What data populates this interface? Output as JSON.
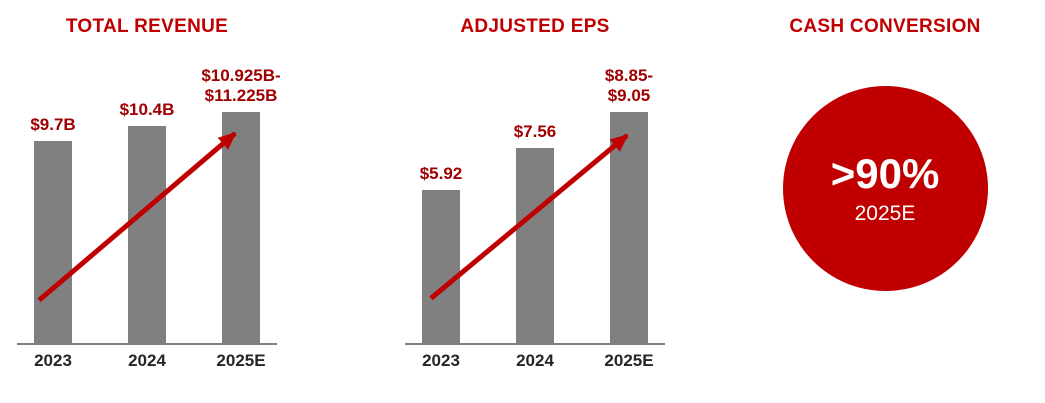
{
  "page": {
    "background": "#ffffff",
    "description": "Financial highlights infographic with two bar charts and one KPI circle"
  },
  "colors": {
    "accent_red": "#c00000",
    "bar_gray": "#808080",
    "axis_gray": "#808080",
    "value_label_red": "#a00000",
    "category_text": "#262626",
    "kpi_text": "#ffffff"
  },
  "chart_data": [
    {
      "type": "bar",
      "title": "TOTAL REVENUE",
      "categories": [
        "2023",
        "2024",
        "2025E"
      ],
      "values": [
        9.7,
        10.4,
        11.075
      ],
      "value_ranges": [
        null,
        null,
        [
          10.925,
          11.225
        ]
      ],
      "value_labels": [
        "$9.7B",
        "$10.4B",
        "$10.925B-\n$11.225B"
      ],
      "unit": "$B",
      "ylim": [
        0,
        11.5
      ],
      "grid": false,
      "legend": false,
      "annotation": "red upward trend arrow across bars"
    },
    {
      "type": "bar",
      "title": "ADJUSTED EPS",
      "categories": [
        "2023",
        "2024",
        "2025E"
      ],
      "values": [
        5.92,
        7.56,
        8.95
      ],
      "value_ranges": [
        null,
        null,
        [
          8.85,
          9.05
        ]
      ],
      "value_labels": [
        "$5.92",
        "$7.56",
        "$8.85-\n$9.05"
      ],
      "unit": "$",
      "ylim": [
        0,
        9.3
      ],
      "grid": false,
      "legend": false,
      "annotation": "red upward trend arrow across bars"
    },
    {
      "type": "kpi",
      "title": "CASH CONVERSION",
      "value": ">90%",
      "sublabel": "2025E",
      "shape": "red circle"
    }
  ]
}
